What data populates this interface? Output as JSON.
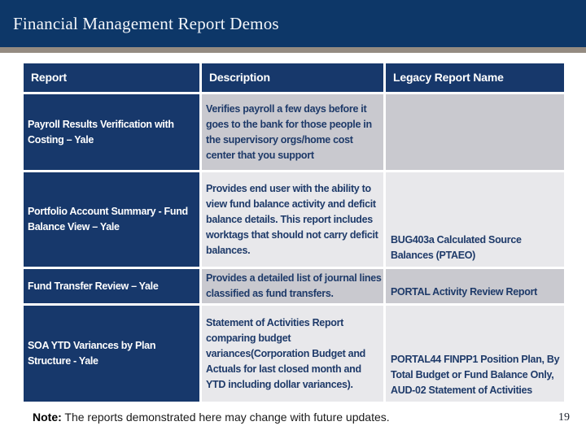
{
  "slide": {
    "title": "Financial Management Report Demos",
    "note_label": "Note:",
    "note_text": " The reports demonstrated here may change with future updates.",
    "page_number": "19"
  },
  "colors": {
    "banner_navy": "#0d3768",
    "table_navy": "#17386b",
    "accent_taupe": "#948b81",
    "band_dark_gray": "#c9c9cf",
    "band_light_gray": "#e8e8eb",
    "body_text_navy": "#1e3a69"
  },
  "table": {
    "headers": [
      "Report",
      "Description",
      "Legacy Report Name"
    ],
    "rows": [
      {
        "report": "Payroll Results Verification with Costing – Yale",
        "description": "Verifies payroll a few days before it goes to the bank for those people in the supervisory orgs/home cost center that you support",
        "legacy": ""
      },
      {
        "report": "Portfolio Account Summary - Fund Balance View – Yale",
        "description": "Provides end user with the ability to view fund balance activity and deficit balance details.  This report includes worktags that should not carry deficit balances.",
        "legacy": "BUG403a Calculated Source Balances (PTAEO)"
      },
      {
        "report": "Fund Transfer Review – Yale",
        "description": "Provides a detailed list of journal lines classified as fund transfers.",
        "legacy": "PORTAL Activity Review Report"
      },
      {
        "report": "SOA YTD Variances by Plan Structure - Yale",
        "description": "Statement of Activities Report comparing budget variances(Corporation Budget and Actuals for last closed month and YTD including dollar variances).",
        "legacy": "PORTAL44 FINPP1 Position Plan, By Total Budget or Fund Balance Only, AUD-02 Statement of Activities"
      }
    ]
  }
}
